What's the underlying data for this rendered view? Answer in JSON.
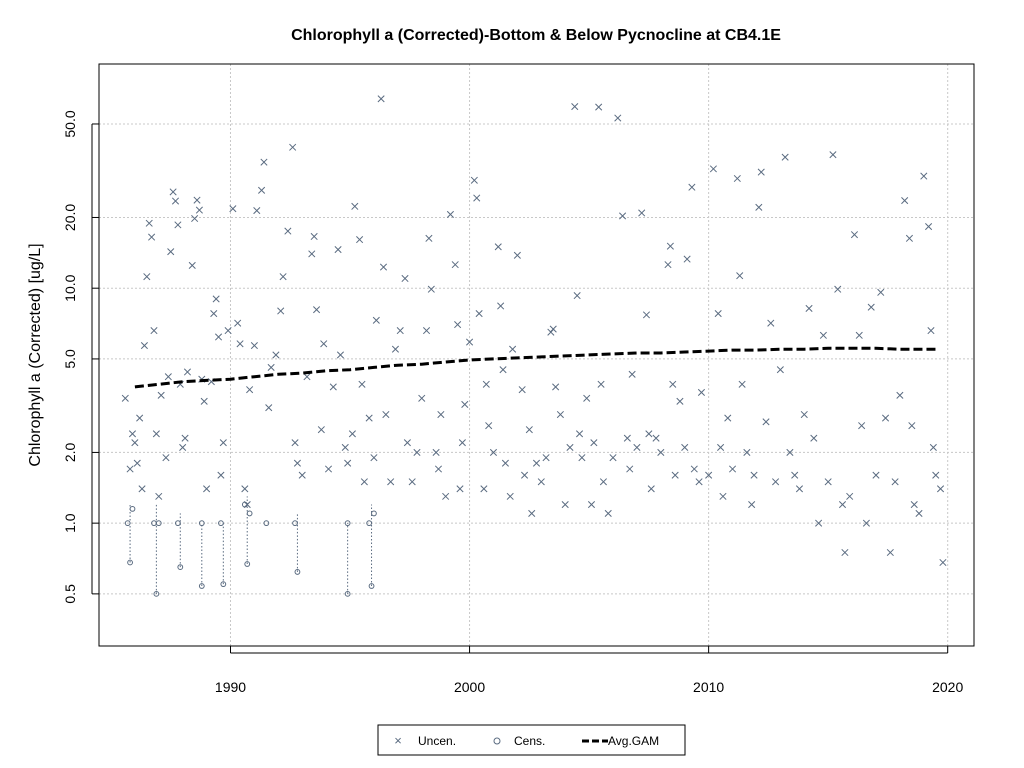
{
  "chart_data": {
    "type": "scatter",
    "title": "Chlorophyll a (Corrected)-Bottom & Below Pycnocline at CB4.1E",
    "xlabel": "",
    "ylabel": "Chlorophyll a (Corrected) [ug/L]",
    "x_ticks": [
      1990,
      2000,
      2010,
      2020
    ],
    "y_ticks": [
      0.5,
      1.0,
      2.0,
      5.0,
      10.0,
      20.0,
      50.0
    ],
    "y_tick_labels": [
      "0.5",
      "1.0",
      "2.0",
      "5.0",
      "10.0",
      "20.0",
      "50.0"
    ],
    "xlim": [
      1984.5,
      2021.1
    ],
    "ylim": [
      0.3,
      90
    ],
    "y_scale": "log",
    "grid": true,
    "legend_position": "bottom",
    "colors": {
      "points": "#5a6b80",
      "gam": "#000000",
      "grid": "#c8c8c8"
    },
    "series": [
      {
        "name": "Uncen.",
        "marker": "x",
        "points": [
          [
            1985.6,
            3.4
          ],
          [
            1985.8,
            1.7
          ],
          [
            1985.9,
            2.4
          ],
          [
            1986.0,
            2.2
          ],
          [
            1986.1,
            1.8
          ],
          [
            1986.2,
            2.8
          ],
          [
            1986.3,
            1.4
          ],
          [
            1986.4,
            5.7
          ],
          [
            1986.5,
            11.2
          ],
          [
            1986.6,
            18.9
          ],
          [
            1986.7,
            16.5
          ],
          [
            1986.8,
            6.6
          ],
          [
            1986.9,
            2.4
          ],
          [
            1987.0,
            1.3
          ],
          [
            1987.1,
            3.5
          ],
          [
            1987.3,
            1.9
          ],
          [
            1987.4,
            4.2
          ],
          [
            1987.5,
            14.3
          ],
          [
            1987.6,
            25.7
          ],
          [
            1987.7,
            23.5
          ],
          [
            1987.8,
            18.6
          ],
          [
            1987.9,
            3.9
          ],
          [
            1988.0,
            2.1
          ],
          [
            1988.1,
            2.3
          ],
          [
            1988.2,
            4.4
          ],
          [
            1988.4,
            12.5
          ],
          [
            1988.5,
            19.8
          ],
          [
            1988.6,
            23.7
          ],
          [
            1988.7,
            21.5
          ],
          [
            1988.8,
            4.1
          ],
          [
            1988.9,
            3.3
          ],
          [
            1989.0,
            1.4
          ],
          [
            1989.2,
            4.0
          ],
          [
            1989.3,
            7.8
          ],
          [
            1989.4,
            9.0
          ],
          [
            1989.5,
            6.2
          ],
          [
            1989.6,
            1.6
          ],
          [
            1989.7,
            2.2
          ],
          [
            1989.9,
            6.6
          ],
          [
            1990.1,
            21.8
          ],
          [
            1990.3,
            7.1
          ],
          [
            1990.4,
            5.8
          ],
          [
            1990.6,
            1.4
          ],
          [
            1990.7,
            1.2
          ],
          [
            1990.8,
            3.7
          ],
          [
            1991.0,
            5.7
          ],
          [
            1991.1,
            21.4
          ],
          [
            1991.3,
            26.1
          ],
          [
            1991.4,
            34.4
          ],
          [
            1991.6,
            3.1
          ],
          [
            1991.7,
            4.6
          ],
          [
            1991.9,
            5.2
          ],
          [
            1992.1,
            8.0
          ],
          [
            1992.2,
            11.2
          ],
          [
            1992.4,
            17.5
          ],
          [
            1992.6,
            39.8
          ],
          [
            1992.7,
            2.2
          ],
          [
            1992.8,
            1.8
          ],
          [
            1993.0,
            1.6
          ],
          [
            1993.2,
            4.2
          ],
          [
            1993.4,
            14.0
          ],
          [
            1993.5,
            16.6
          ],
          [
            1993.6,
            8.1
          ],
          [
            1993.8,
            2.5
          ],
          [
            1993.9,
            5.8
          ],
          [
            1994.1,
            1.7
          ],
          [
            1994.3,
            3.8
          ],
          [
            1994.5,
            14.6
          ],
          [
            1994.6,
            5.2
          ],
          [
            1994.8,
            2.1
          ],
          [
            1994.9,
            1.8
          ],
          [
            1995.1,
            2.4
          ],
          [
            1995.2,
            22.3
          ],
          [
            1995.4,
            16.1
          ],
          [
            1995.5,
            3.9
          ],
          [
            1995.6,
            1.5
          ],
          [
            1995.8,
            2.8
          ],
          [
            1996.0,
            1.9
          ],
          [
            1996.1,
            7.3
          ],
          [
            1996.3,
            64.0
          ],
          [
            1996.4,
            12.3
          ],
          [
            1996.5,
            2.9
          ],
          [
            1996.7,
            1.5
          ],
          [
            1996.9,
            5.5
          ],
          [
            1997.1,
            6.6
          ],
          [
            1997.3,
            11.0
          ],
          [
            1997.4,
            2.2
          ],
          [
            1997.6,
            1.5
          ],
          [
            1997.8,
            2.0
          ],
          [
            1998.0,
            3.4
          ],
          [
            1998.2,
            6.6
          ],
          [
            1998.3,
            16.3
          ],
          [
            1998.4,
            9.9
          ],
          [
            1998.6,
            2.0
          ],
          [
            1998.7,
            1.7
          ],
          [
            1998.8,
            2.9
          ],
          [
            1999.0,
            1.3
          ],
          [
            1999.2,
            20.6
          ],
          [
            1999.4,
            12.6
          ],
          [
            1999.5,
            7.0
          ],
          [
            1999.6,
            1.4
          ],
          [
            1999.7,
            2.2
          ],
          [
            1999.8,
            3.2
          ],
          [
            2000.0,
            5.9
          ],
          [
            2000.2,
            28.8
          ],
          [
            2000.3,
            24.2
          ],
          [
            2000.4,
            7.8
          ],
          [
            2000.6,
            1.4
          ],
          [
            2000.7,
            3.9
          ],
          [
            2000.8,
            2.6
          ],
          [
            2001.0,
            2.0
          ],
          [
            2001.2,
            15.0
          ],
          [
            2001.3,
            8.4
          ],
          [
            2001.4,
            4.5
          ],
          [
            2001.5,
            1.8
          ],
          [
            2001.7,
            1.3
          ],
          [
            2001.8,
            5.5
          ],
          [
            2002.0,
            13.8
          ],
          [
            2002.2,
            3.7
          ],
          [
            2002.3,
            1.6
          ],
          [
            2002.5,
            2.5
          ],
          [
            2002.6,
            1.1
          ],
          [
            2002.8,
            1.8
          ],
          [
            2003.0,
            1.5
          ],
          [
            2003.2,
            1.9
          ],
          [
            2003.4,
            6.5
          ],
          [
            2003.5,
            6.7
          ],
          [
            2003.6,
            3.8
          ],
          [
            2003.8,
            2.9
          ],
          [
            2004.0,
            1.2
          ],
          [
            2004.2,
            2.1
          ],
          [
            2004.4,
            59.3
          ],
          [
            2004.5,
            9.3
          ],
          [
            2004.6,
            2.4
          ],
          [
            2004.7,
            1.9
          ],
          [
            2004.9,
            3.4
          ],
          [
            2005.1,
            1.2
          ],
          [
            2005.2,
            2.2
          ],
          [
            2005.4,
            59.0
          ],
          [
            2005.5,
            3.9
          ],
          [
            2005.6,
            1.5
          ],
          [
            2005.8,
            1.1
          ],
          [
            2006.0,
            1.9
          ],
          [
            2006.2,
            53.0
          ],
          [
            2006.4,
            20.3
          ],
          [
            2006.6,
            2.3
          ],
          [
            2006.7,
            1.7
          ],
          [
            2006.8,
            4.3
          ],
          [
            2007.0,
            2.1
          ],
          [
            2007.2,
            20.9
          ],
          [
            2007.4,
            7.7
          ],
          [
            2007.5,
            2.4
          ],
          [
            2007.6,
            1.4
          ],
          [
            2007.8,
            2.3
          ],
          [
            2008.0,
            2.0
          ],
          [
            2008.3,
            12.6
          ],
          [
            2008.4,
            15.1
          ],
          [
            2008.5,
            3.9
          ],
          [
            2008.6,
            1.6
          ],
          [
            2008.8,
            3.3
          ],
          [
            2009.0,
            2.1
          ],
          [
            2009.1,
            13.3
          ],
          [
            2009.3,
            26.9
          ],
          [
            2009.4,
            1.7
          ],
          [
            2009.6,
            1.5
          ],
          [
            2009.7,
            3.6
          ],
          [
            2010.0,
            1.6
          ],
          [
            2010.2,
            32.2
          ],
          [
            2010.4,
            7.8
          ],
          [
            2010.5,
            2.1
          ],
          [
            2010.6,
            1.3
          ],
          [
            2010.8,
            2.8
          ],
          [
            2011.0,
            1.7
          ],
          [
            2011.2,
            29.3
          ],
          [
            2011.3,
            11.3
          ],
          [
            2011.4,
            3.9
          ],
          [
            2011.6,
            2.0
          ],
          [
            2011.8,
            1.2
          ],
          [
            2011.9,
            1.6
          ],
          [
            2012.1,
            22.1
          ],
          [
            2012.2,
            31.2
          ],
          [
            2012.4,
            2.7
          ],
          [
            2012.6,
            7.1
          ],
          [
            2012.8,
            1.5
          ],
          [
            2013.0,
            4.5
          ],
          [
            2013.2,
            36.1
          ],
          [
            2013.4,
            2.0
          ],
          [
            2013.6,
            1.6
          ],
          [
            2013.8,
            1.4
          ],
          [
            2014.0,
            2.9
          ],
          [
            2014.2,
            8.2
          ],
          [
            2014.4,
            2.3
          ],
          [
            2014.6,
            1.0
          ],
          [
            2014.8,
            6.3
          ],
          [
            2015.0,
            1.5
          ],
          [
            2015.2,
            37.0
          ],
          [
            2015.4,
            9.9
          ],
          [
            2015.6,
            1.2
          ],
          [
            2015.7,
            0.75
          ],
          [
            2015.9,
            1.3
          ],
          [
            2016.1,
            16.9
          ],
          [
            2016.3,
            6.3
          ],
          [
            2016.4,
            2.6
          ],
          [
            2016.6,
            1.0
          ],
          [
            2016.8,
            8.3
          ],
          [
            2017.0,
            1.6
          ],
          [
            2017.2,
            9.6
          ],
          [
            2017.4,
            2.8
          ],
          [
            2017.6,
            0.75
          ],
          [
            2017.8,
            1.5
          ],
          [
            2018.0,
            3.5
          ],
          [
            2018.2,
            23.6
          ],
          [
            2018.4,
            16.3
          ],
          [
            2018.5,
            2.6
          ],
          [
            2018.6,
            1.2
          ],
          [
            2018.8,
            1.1
          ],
          [
            2019.0,
            30.0
          ],
          [
            2019.2,
            18.3
          ],
          [
            2019.3,
            6.6
          ],
          [
            2019.4,
            2.1
          ],
          [
            2019.5,
            1.6
          ],
          [
            2019.7,
            1.4
          ],
          [
            2019.8,
            0.68
          ]
        ]
      },
      {
        "name": "Cens.",
        "marker": "circle",
        "points": [
          [
            1985.7,
            1.0
          ],
          [
            1985.8,
            0.68
          ],
          [
            1985.9,
            1.15
          ],
          [
            1986.8,
            1.0
          ],
          [
            1986.9,
            0.5
          ],
          [
            1987.0,
            1.0
          ],
          [
            1987.8,
            1.0
          ],
          [
            1987.9,
            0.65
          ],
          [
            1988.8,
            1.0
          ],
          [
            1988.8,
            0.54
          ],
          [
            1989.6,
            1.0
          ],
          [
            1989.7,
            0.55
          ],
          [
            1990.6,
            1.2
          ],
          [
            1990.7,
            0.67
          ],
          [
            1990.8,
            1.1
          ],
          [
            1991.5,
            1.0
          ],
          [
            1992.7,
            1.0
          ],
          [
            1992.8,
            0.62
          ],
          [
            1994.9,
            1.0
          ],
          [
            1994.9,
            0.5
          ],
          [
            1995.8,
            1.0
          ],
          [
            1995.9,
            0.54
          ],
          [
            1996.0,
            1.1
          ]
        ],
        "ranges": [
          [
            1985.8,
            0.68,
            1.2
          ],
          [
            1986.9,
            0.5,
            1.2
          ],
          [
            1987.9,
            0.65,
            1.1
          ],
          [
            1988.8,
            0.54,
            1.0
          ],
          [
            1989.7,
            0.55,
            1.0
          ],
          [
            1990.7,
            0.67,
            1.3
          ],
          [
            1992.8,
            0.62,
            1.1
          ],
          [
            1994.9,
            0.5,
            1.0
          ],
          [
            1995.9,
            0.54,
            1.2
          ]
        ]
      },
      {
        "name": "Avg.GAM",
        "marker": "dashed-line",
        "x": [
          1986.0,
          1987.0,
          1988.0,
          1989.0,
          1990.0,
          1991.0,
          1992.0,
          1993.0,
          1994.0,
          1995.0,
          1996.0,
          1997.0,
          1998.0,
          1999.0,
          2000.0,
          2001.0,
          2002.0,
          2003.0,
          2004.0,
          2005.0,
          2006.0,
          2007.0,
          2008.0,
          2009.0,
          2010.0,
          2011.0,
          2012.0,
          2013.0,
          2014.0,
          2015.0,
          2016.0,
          2017.0,
          2018.0,
          2019.0,
          2019.5
        ],
        "y": [
          3.8,
          3.9,
          4.0,
          4.05,
          4.1,
          4.2,
          4.3,
          4.35,
          4.45,
          4.5,
          4.6,
          4.7,
          4.75,
          4.85,
          4.95,
          5.0,
          5.05,
          5.1,
          5.15,
          5.2,
          5.25,
          5.3,
          5.3,
          5.35,
          5.4,
          5.45,
          5.45,
          5.5,
          5.5,
          5.55,
          5.55,
          5.55,
          5.5,
          5.5,
          5.5
        ]
      }
    ]
  }
}
